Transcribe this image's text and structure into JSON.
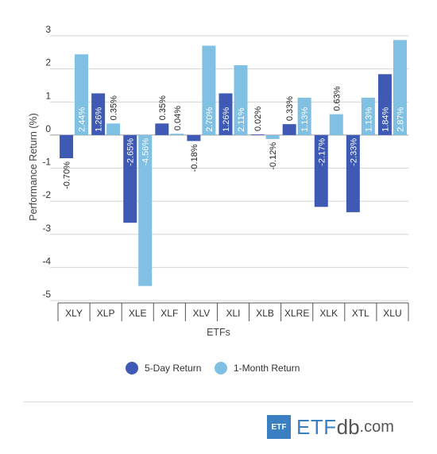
{
  "chart_data": {
    "type": "bar",
    "categories": [
      "XLY",
      "XLP",
      "XLE",
      "XLF",
      "XLV",
      "XLI",
      "XLB",
      "XLRE",
      "XLK",
      "XTL",
      "XLU"
    ],
    "series": [
      {
        "name": "5-Day Return",
        "color": "#3f5ab5",
        "values": [
          -0.7,
          1.26,
          -2.65,
          0.35,
          -0.18,
          1.26,
          0.02,
          0.33,
          -2.17,
          -2.33,
          1.84
        ],
        "labels": [
          "-0.70%",
          "1.26%",
          "-2.65%",
          "0.35%",
          "-0.18%",
          "1.26%",
          "0.02%",
          "0.33%",
          "-2.17%",
          "-2.33%",
          "1.84%"
        ]
      },
      {
        "name": "1-Month Return",
        "color": "#7fc0e3",
        "values": [
          2.44,
          0.35,
          -4.56,
          0.04,
          2.7,
          2.11,
          -0.12,
          1.13,
          0.63,
          1.13,
          2.87
        ],
        "labels": [
          "2.44%",
          "0.35%",
          "-4.56%",
          "0.04%",
          "2.70%",
          "2.11%",
          "-0.12%",
          "1.13%",
          "0.63%",
          "1.13%",
          "2.87%"
        ]
      }
    ],
    "yticks": [
      3,
      2,
      1,
      0,
      -1,
      -2,
      -3,
      -4,
      -5
    ],
    "ylim": [
      -5,
      3
    ],
    "xlabel": "ETFs",
    "ylabel": "Performance Return (%)",
    "grid": true,
    "legend_position": "bottom"
  },
  "brand": {
    "box_text": "ETF",
    "name_part1": "ETF",
    "name_part2": "db",
    "name_part3": ".com"
  }
}
